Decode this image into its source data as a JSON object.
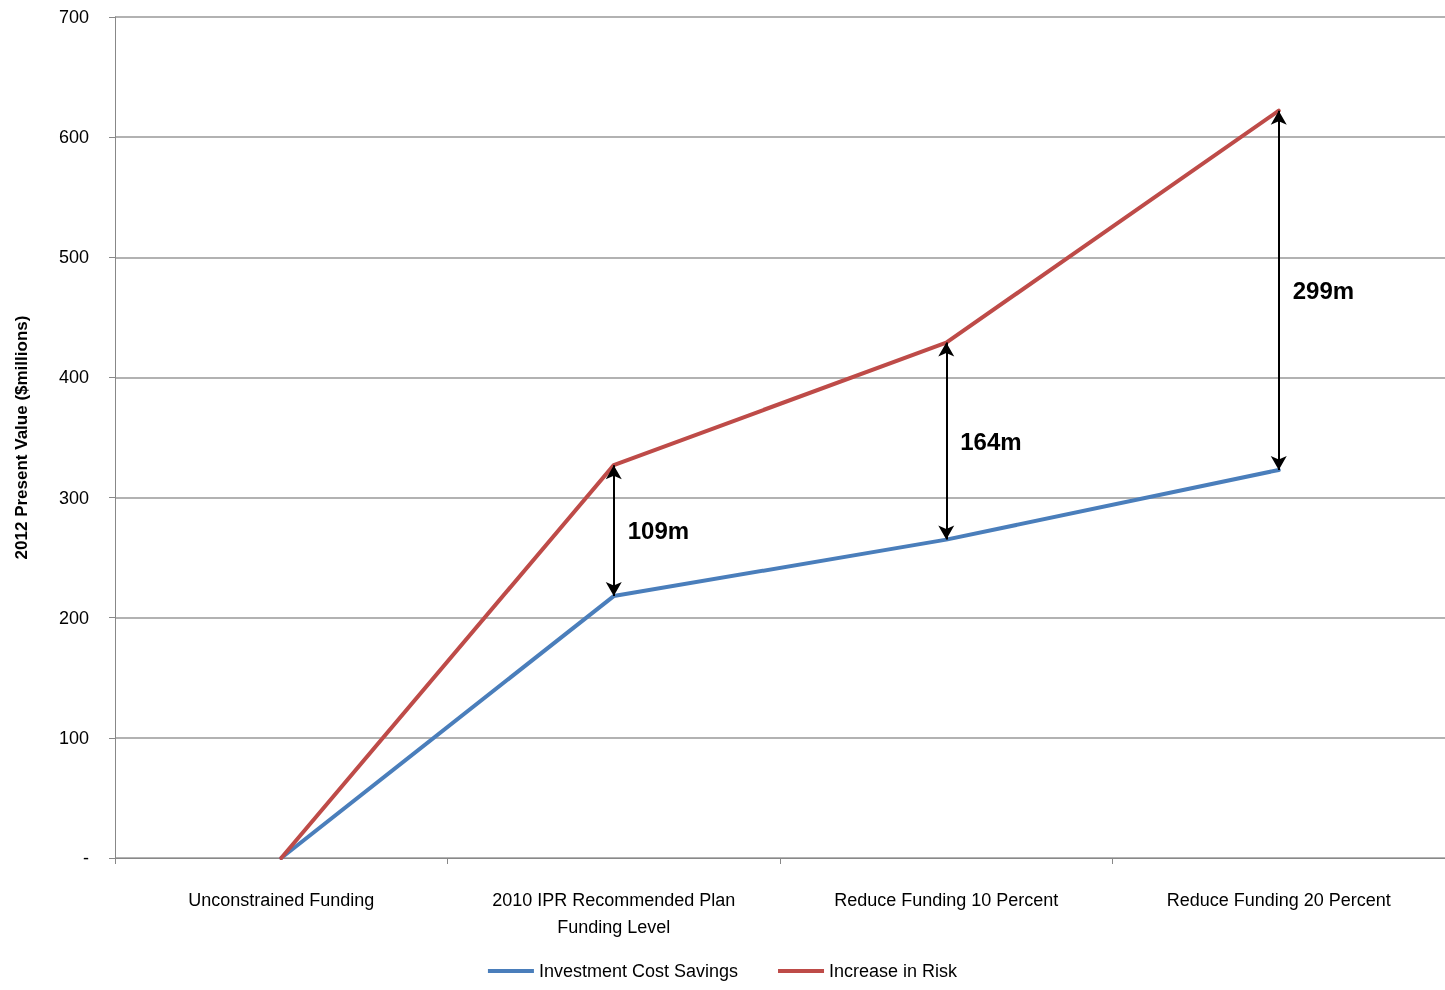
{
  "chart_data": {
    "type": "line",
    "ylabel": "2012 Present Value ($millions)",
    "categories": [
      "Unconstrained Funding",
      "2010 IPR Recommended Plan\nFunding Level",
      "Reduce Funding 10 Percent",
      "Reduce Funding 20 Percent"
    ],
    "series": [
      {
        "name": "Investment Cost Savings",
        "color": "#4a7ebb",
        "values": [
          0,
          218,
          265,
          323
        ]
      },
      {
        "name": "Increase in Risk",
        "color": "#be4b48",
        "values": [
          0,
          327,
          429,
          622
        ]
      }
    ],
    "ylim": [
      0,
      700
    ],
    "yticks": [
      {
        "value": 0,
        "label": "-"
      },
      100,
      200,
      300,
      400,
      500,
      600,
      700
    ],
    "annotations": [
      "109m",
      "164m",
      "299m"
    ],
    "grid": "y",
    "legend": "bottom",
    "marker": "none",
    "line_style": "solid"
  }
}
